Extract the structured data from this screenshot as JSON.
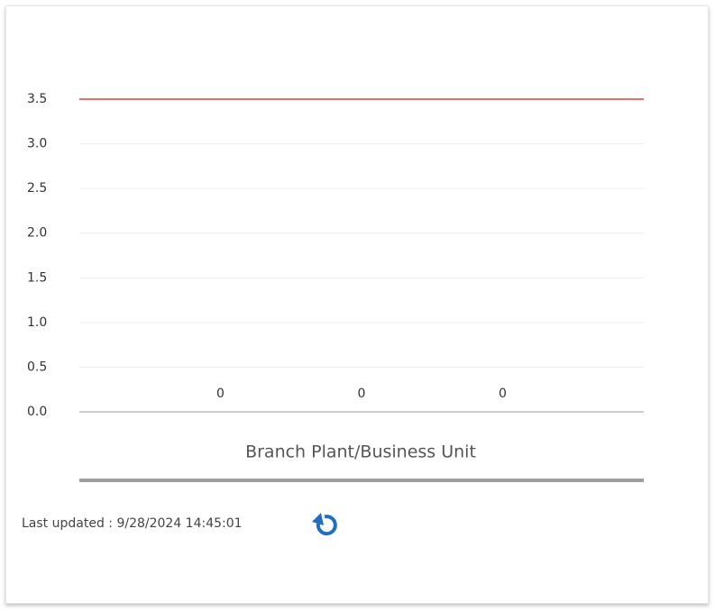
{
  "chart_data": {
    "type": "bar",
    "categories": [
      null,
      null,
      null
    ],
    "values": [
      0,
      0,
      0
    ],
    "color": "#4a90d9",
    "ylim": [
      0,
      3.5
    ],
    "yticks": [
      {
        "value": 0,
        "label": "0.0"
      },
      {
        "value": 0.5,
        "label": "0.5"
      },
      {
        "value": 1,
        "label": "1.0"
      },
      {
        "value": 1.5,
        "label": "1.5"
      },
      {
        "value": 2,
        "label": "2.0"
      },
      {
        "value": 2.5,
        "label": "2.5"
      },
      {
        "value": 3,
        "label": "3.0"
      },
      {
        "value": 3.5,
        "label": "3.5"
      }
    ],
    "grid": true,
    "reference_line": {
      "value": 3.5,
      "color": "#e53935"
    },
    "xlabel": "Branch Plant/Business Unit"
  },
  "footer": {
    "last_updated": "Last updated : 9/28/2024 14:45:01"
  }
}
